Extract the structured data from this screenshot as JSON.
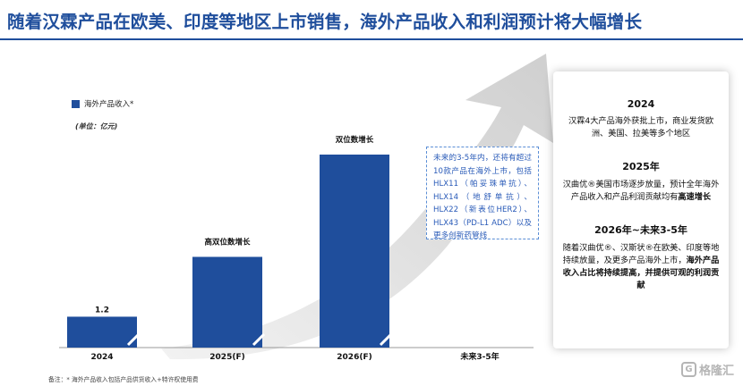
{
  "title": "随着汉霖产品在欧美、印度等地区上市销售，海外产品收入和利润预计将大幅增长",
  "colors": {
    "brand": "#1f4e9c",
    "arrow": "#d6d6d6",
    "note": "#2a5bb8"
  },
  "chart_data": {
    "type": "bar",
    "categories": [
      "2024",
      "2025(F)",
      "2026(F)",
      "未来3-5年"
    ],
    "series": [
      {
        "name": "海外产品收入*",
        "values": [
          1.2,
          null,
          null,
          null
        ]
      }
    ],
    "relative_heights": [
      0.16,
      0.47,
      1.0,
      null
    ],
    "broken_axis_bars": [
      true,
      true,
      true,
      false
    ],
    "data_labels": [
      "1.2",
      "",
      "",
      ""
    ],
    "bar_annotations": [
      "",
      "高双位数增长",
      "双位数增长",
      ""
    ],
    "unit": "(单位：亿元)",
    "legend_position": "top-left",
    "grid": false
  },
  "note": "未来的3-5年内，还将有超过10款产品在海外上市，包括HLX11（帕妥珠单抗）、HLX14（地舒单抗）、HLX22（新表位HER2）、HLX43（PD-L1 ADC）以及更多创新药管线",
  "panel": {
    "s1_year": "2024",
    "s1_body": "汉霖4大产品海外获批上市，商业发货欧洲、美国、拉美等多个地区",
    "s2_year": "2025年",
    "s2_body_a": "汉曲优®美国市场逐步放量，预计全年海外产品收入和产品利润贡献均有",
    "s2_body_b": "高速增长",
    "s3_year": "2026年~未来3-5年",
    "s3_body_a": "随着汉曲优®、汉斯状®在欧美、印度等地持续放量，及更多产品海外上市，",
    "s3_body_b": "海外产品收入占比将持续提高，并提供可观的利润贡献"
  },
  "footnote": "备注：* 海外产品收入包括产品供货收入+特许权使用费",
  "watermark": "格隆汇"
}
